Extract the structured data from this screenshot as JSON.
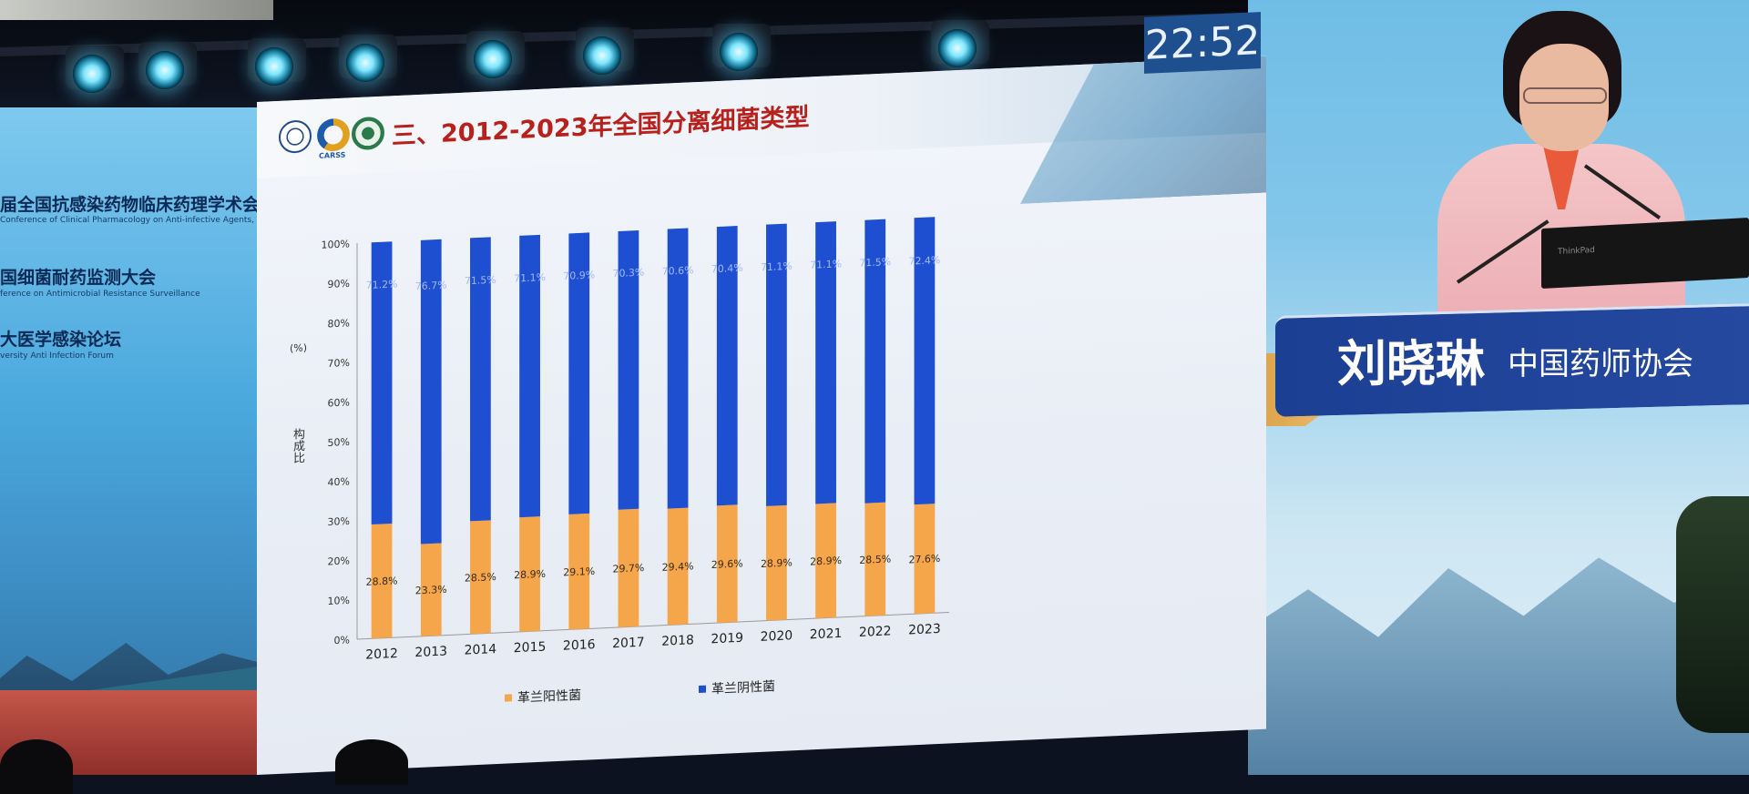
{
  "timer": {
    "value": "22:52"
  },
  "left_banner": {
    "lines": [
      {
        "zh": "届全国抗感染药物临床药理学术会议",
        "en": "Conference of Clinical Pharmacology on Anti-infective Agents, NCCPAA"
      },
      {
        "zh": "国细菌耐药监测大会",
        "en": "ference on Antimicrobial Resistance Surveillance"
      },
      {
        "zh": "大医学感染论坛",
        "en": "versity Anti Infection Forum"
      }
    ]
  },
  "slide": {
    "title": "三、2012-2023年全国分离细菌类型",
    "logo_text": "CARSS"
  },
  "speaker": {
    "name": "刘晓琳",
    "organization": "中国药师协会",
    "laptop_brand": "ThinkPad"
  },
  "colors": {
    "gram_negative": "#1f4fd1",
    "gram_positive": "#f5a64a",
    "title_red": "#b8201c",
    "banner_blue": "#1b3f93",
    "timer_blue": "#1e4f8e"
  },
  "chart_data": {
    "type": "bar",
    "stacked": true,
    "percent": true,
    "categories": [
      "2012",
      "2013",
      "2014",
      "2015",
      "2016",
      "2017",
      "2018",
      "2019",
      "2020",
      "2021",
      "2022",
      "2023"
    ],
    "series": [
      {
        "name": "革兰阳性菌",
        "values": [
          28.8,
          23.3,
          28.5,
          28.9,
          29.1,
          29.7,
          29.4,
          29.6,
          28.9,
          28.9,
          28.5,
          27.6
        ]
      },
      {
        "name": "革兰阴性菌",
        "values": [
          71.2,
          76.7,
          71.5,
          71.1,
          70.9,
          70.3,
          70.6,
          70.4,
          71.1,
          71.1,
          71.5,
          72.4
        ]
      }
    ],
    "ylabel": "构成比",
    "yunit": "(%)",
    "yticks": [
      "0%",
      "10%",
      "20%",
      "30%",
      "40%",
      "50%",
      "60%",
      "70%",
      "80%",
      "90%",
      "100%"
    ],
    "ylim": [
      0,
      100
    ],
    "legend_position": "bottom"
  }
}
